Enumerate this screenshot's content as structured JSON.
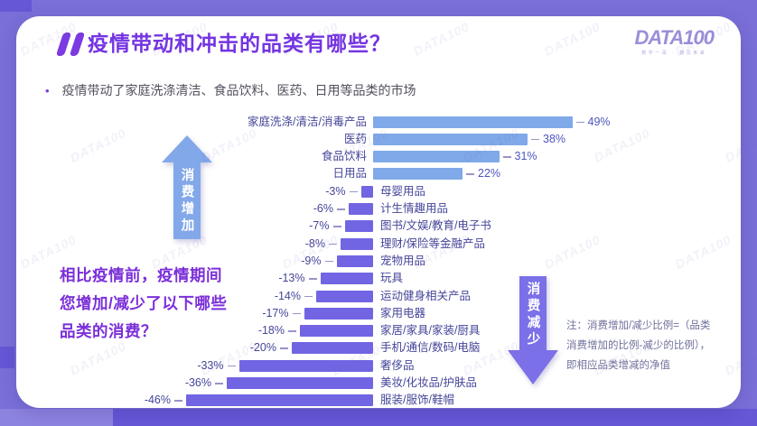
{
  "header": {
    "title": "疫情带动和冲击的品类有哪些？",
    "bullet": "疫情带动了家庭洗涤清洁、食品饮料、医药、日用等品类的市场"
  },
  "logo": {
    "text": "DATA100",
    "tagline": "数字一百 · 数见未来"
  },
  "watermark": "DATA100",
  "annotations": {
    "increase_arrow": "消费增加",
    "decrease_arrow": "消费减少",
    "question": [
      "相比疫情前，疫情期间",
      "您增加/减少了以下哪些",
      "品类的消费？"
    ],
    "note": [
      "注：消费增加/减少比例=（品类",
      "消费增加的比例-减少的比例），",
      "即相应品类增减的净值"
    ]
  },
  "chart_data": {
    "type": "bar",
    "orientation": "horizontal-diverging",
    "unit": "percent",
    "categories": [
      "家庭洗涤/清洁/消毒产品",
      "医药",
      "食品饮料",
      "日用品",
      "母婴用品",
      "计生情趣用品",
      "图书/文娱/教育/电子书",
      "理财/保险等金融产品",
      "宠物用品",
      "玩具",
      "运动健身相关产品",
      "家用电器",
      "家居/家具/家装/厨具",
      "手机/通信/数码/电脑",
      "奢侈品",
      "美妆/化妆品/护肤品",
      "服装/服饰/鞋帽"
    ],
    "values": [
      49,
      38,
      31,
      22,
      -3,
      -6,
      -7,
      -8,
      -9,
      -13,
      -14,
      -17,
      -18,
      -20,
      -33,
      -36,
      -46
    ],
    "positive_color": "#7FA9E8",
    "negative_color": "#7165E3",
    "xlim": [
      -50,
      55
    ],
    "grid": false,
    "legend": false
  },
  "colors": {
    "page_background": "#7A6FD8",
    "accent_block": "#6557D5",
    "card": "#ffffff",
    "title": "#7434E2",
    "label_text": "#45459A",
    "positive_value_text": "#4C55BE",
    "question_text": "#7B2FD9",
    "note_text": "#70709C",
    "increase_arrow": "#82A8EA",
    "decrease_arrow": "#7B70E8"
  }
}
